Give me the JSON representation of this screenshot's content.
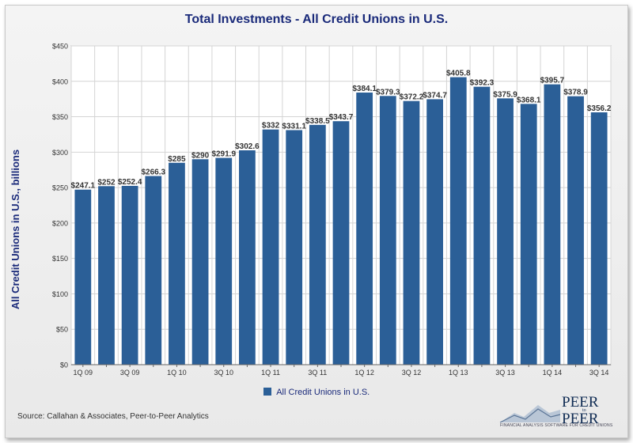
{
  "chart_data": {
    "type": "bar",
    "title": "Total Investments - All Credit Unions in U.S.",
    "ylabel": "All Credit Unions in U.S., billions",
    "xlabel": "",
    "ylim": [
      0,
      450
    ],
    "yticks": [
      "$0",
      "$50",
      "$100",
      "$150",
      "$200",
      "$250",
      "$300",
      "$350",
      "$400",
      "$450"
    ],
    "grid": true,
    "legend_position": "bottom",
    "categories": [
      "1Q 09",
      "2Q 09",
      "3Q 09",
      "4Q 09",
      "1Q 10",
      "2Q 10",
      "3Q 10",
      "4Q 10",
      "1Q 11",
      "2Q 11",
      "3Q 11",
      "4Q 11",
      "1Q 12",
      "2Q 12",
      "3Q 12",
      "4Q 12",
      "1Q 13",
      "2Q 13",
      "3Q 13",
      "4Q 13",
      "1Q 14",
      "2Q 14",
      "3Q 14"
    ],
    "xtick_labels": [
      "1Q 09",
      "",
      "3Q 09",
      "",
      "1Q 10",
      "",
      "3Q 10",
      "",
      "1Q 11",
      "",
      "3Q 11",
      "",
      "1Q 12",
      "",
      "3Q 12",
      "",
      "1Q 13",
      "",
      "3Q 13",
      "",
      "1Q 14",
      "",
      "3Q 14"
    ],
    "series": [
      {
        "name": "All Credit Unions in U.S.",
        "color": "#2b5f97",
        "values": [
          247.1,
          252.0,
          252.4,
          266.3,
          285.0,
          290.0,
          291.9,
          302.6,
          332.0,
          331.1,
          338.5,
          343.7,
          384.1,
          379.3,
          372.2,
          374.7,
          405.8,
          392.3,
          375.9,
          368.1,
          395.7,
          378.9,
          356.2
        ],
        "data_labels": [
          "$247.1",
          "$252",
          "$252.4",
          "$266.3",
          "$285",
          "$290",
          "$291.9",
          "$302.6",
          "$332",
          "$331.1",
          "$338.5",
          "$343.7",
          "$384.1",
          "$379.3",
          "$372.2",
          "$374.7",
          "$405.8",
          "$392.3",
          "$375.9",
          "$368.1",
          "$395.7",
          "$378.9",
          "$356.2"
        ]
      }
    ]
  },
  "legend": {
    "label": "All Credit Unions in U.S."
  },
  "footer": {
    "source": "Source: Callahan & Associates, Peer-to-Peer Analytics",
    "logo_line1": "PEER",
    "logo_line2": "PEER",
    "logo_mid": "to",
    "logo_tagline": "FINANCIAL ANALYSIS SOFTWARE FOR CREDIT UNIONS"
  }
}
